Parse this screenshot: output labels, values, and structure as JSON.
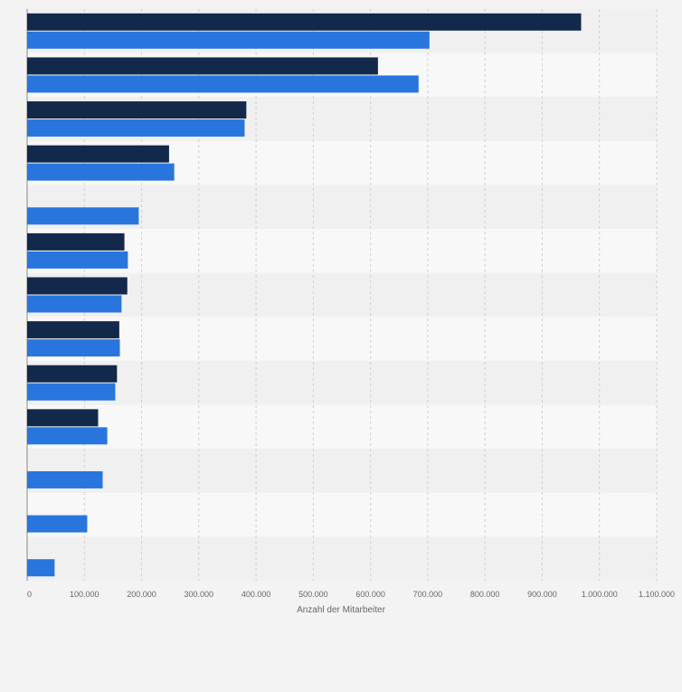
{
  "chart_data": {
    "type": "bar",
    "orientation": "horizontal",
    "title": "",
    "xlabel": "Anzahl der Mitarbeiter",
    "ylabel": "",
    "xlim": [
      0,
      1100000
    ],
    "grid": true,
    "legend": "none",
    "x_ticks": [
      "0",
      "100.000",
      "200.000",
      "300.000",
      "400.000",
      "500.000",
      "600.000",
      "700.000",
      "800.000",
      "900.000",
      "1.000.000",
      "1.100.000"
    ],
    "series": [
      {
        "color": "#13294b",
        "values": [
          968000,
          613000,
          383000,
          248000,
          null,
          170000,
          175000,
          161000,
          157000,
          124000,
          null,
          null,
          null
        ]
      },
      {
        "color": "#2876dd",
        "values": [
          703000,
          684000,
          380000,
          257000,
          195000,
          176000,
          165000,
          162000,
          154000,
          140000,
          132000,
          105000,
          48000
        ]
      }
    ]
  },
  "colors": {
    "background": "#f3f3f4",
    "band_light": "#f8f8f9",
    "band_dark": "#f0f0f1",
    "gridline": "#cfcfd4",
    "axis_text": "#666666"
  }
}
